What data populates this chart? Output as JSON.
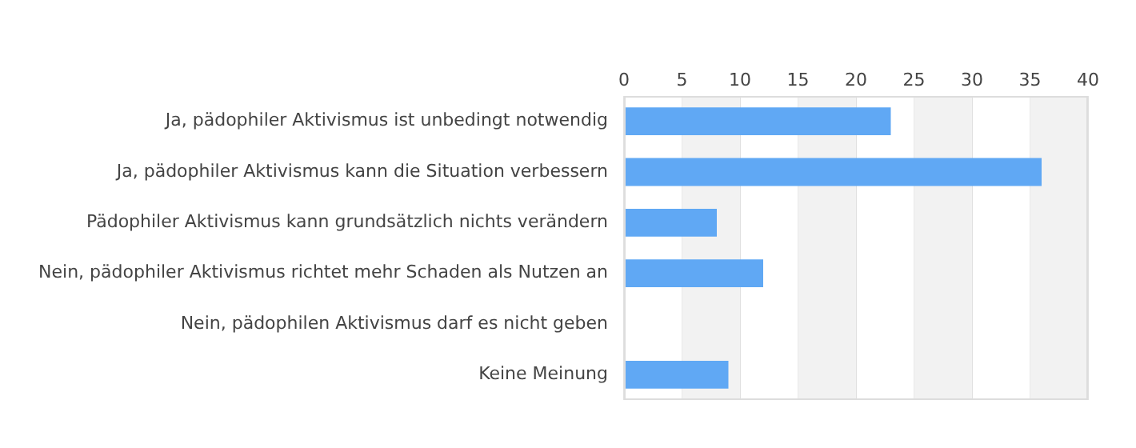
{
  "chart_data": {
    "type": "bar",
    "orientation": "horizontal",
    "categories": [
      "Ja, pädophiler Aktivismus ist unbedingt notwendig",
      "Ja, pädophiler Aktivismus kann die Situation verbessern",
      "Pädophiler Aktivismus kann grundsätzlich nichts verändern",
      "Nein, pädophiler Aktivismus richtet mehr Schaden als Nutzen an",
      "Nein, pädophilen Aktivismus darf es nicht geben",
      "Keine Meinung"
    ],
    "values": [
      23,
      36,
      8,
      12,
      0,
      9
    ],
    "color": "#60a8f4",
    "xlim": [
      0,
      40
    ],
    "xticks": [
      0,
      5,
      10,
      15,
      20,
      25,
      30,
      35,
      40
    ],
    "grid": "x",
    "bands": [
      {
        "axis": "x",
        "from": 5,
        "to": 10,
        "color": "#f2f2f2"
      },
      {
        "axis": "x",
        "from": 15,
        "to": 20,
        "color": "#f2f2f2"
      },
      {
        "axis": "x",
        "from": 25,
        "to": 30,
        "color": "#f2f2f2"
      },
      {
        "axis": "x",
        "from": 35,
        "to": 40,
        "color": "#f2f2f2"
      }
    ]
  }
}
